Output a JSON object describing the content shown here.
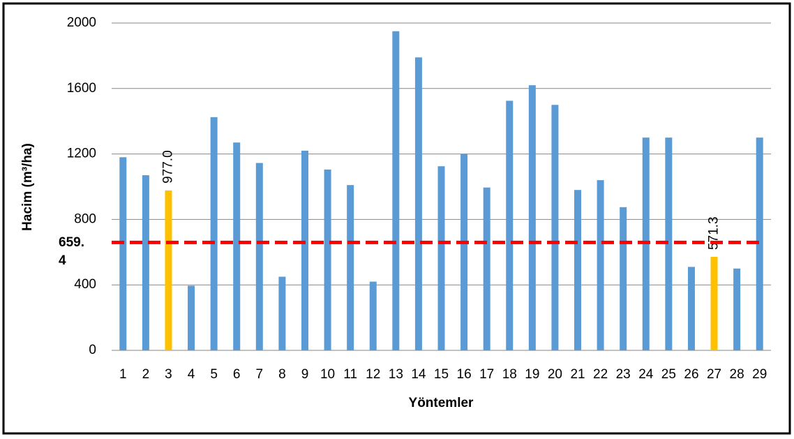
{
  "chart_data": {
    "type": "bar",
    "x_label": "Yöntemler",
    "y_label": "Hacim (m³/ha)",
    "categories": [
      "1",
      "2",
      "3",
      "4",
      "5",
      "6",
      "7",
      "8",
      "9",
      "10",
      "11",
      "12",
      "13",
      "14",
      "15",
      "16",
      "17",
      "18",
      "19",
      "20",
      "21",
      "22",
      "23",
      "24",
      "25",
      "26",
      "27",
      "28",
      "29"
    ],
    "values": [
      1180,
      1070,
      977.0,
      395,
      1425,
      1270,
      1145,
      450,
      1220,
      1105,
      1010,
      420,
      1950,
      1790,
      1125,
      1200,
      995,
      1525,
      1620,
      1500,
      980,
      1040,
      875,
      1300,
      1300,
      510,
      571.3,
      500,
      1300
    ],
    "value_labels": [
      null,
      null,
      "977.0",
      null,
      null,
      null,
      null,
      null,
      null,
      null,
      null,
      null,
      null,
      null,
      null,
      null,
      null,
      null,
      null,
      null,
      null,
      null,
      null,
      null,
      null,
      null,
      "571.3",
      null,
      null
    ],
    "colors": [
      "#5b9bd5",
      "#5b9bd5",
      "#ffc000",
      "#5b9bd5",
      "#5b9bd5",
      "#5b9bd5",
      "#5b9bd5",
      "#5b9bd5",
      "#5b9bd5",
      "#5b9bd5",
      "#5b9bd5",
      "#5b9bd5",
      "#5b9bd5",
      "#5b9bd5",
      "#5b9bd5",
      "#5b9bd5",
      "#5b9bd5",
      "#5b9bd5",
      "#5b9bd5",
      "#5b9bd5",
      "#5b9bd5",
      "#5b9bd5",
      "#5b9bd5",
      "#5b9bd5",
      "#5b9bd5",
      "#5b9bd5",
      "#ffc000",
      "#5b9bd5",
      "#5b9bd5"
    ],
    "reference_line": {
      "value": 659.4,
      "label": "659.4",
      "color": "#ff0000"
    },
    "ylim": [
      0,
      2000
    ],
    "yticks": [
      0,
      400,
      800,
      1200,
      1600,
      2000
    ],
    "grid": true
  }
}
